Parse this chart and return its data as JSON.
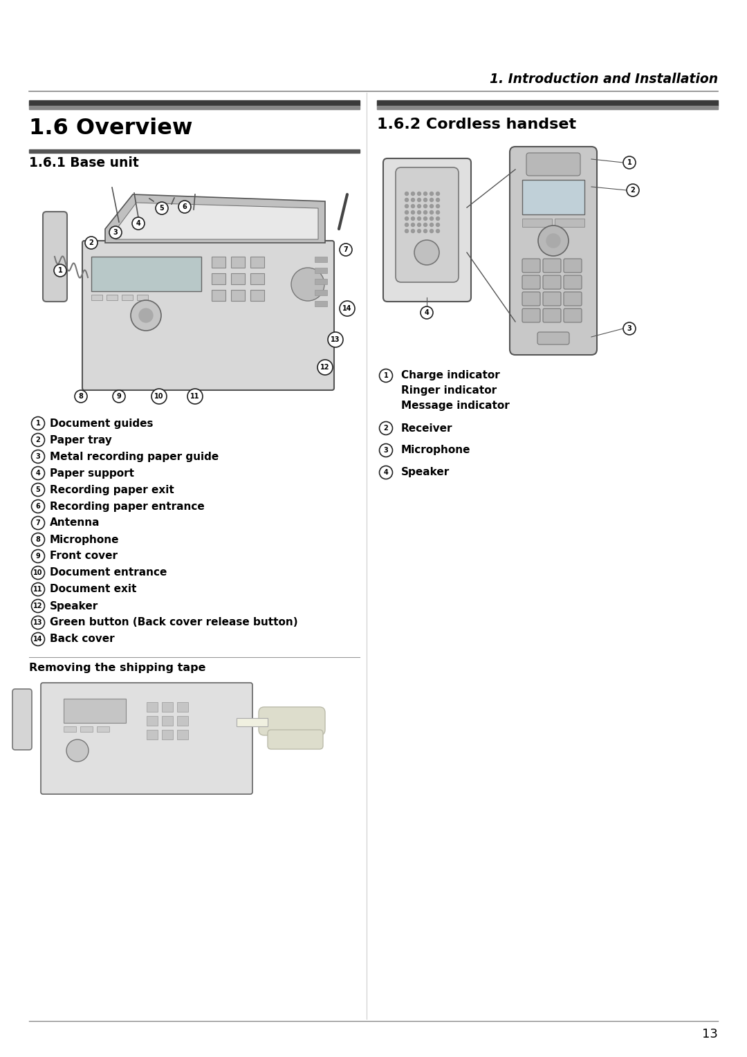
{
  "page_bg": "#ffffff",
  "header_text": "1. Introduction and Installation",
  "header_color": "#000000",
  "header_line_color": "#888888",
  "left_section_title": "1.6 Overview",
  "left_subsection_title": "1.6.1 Base unit",
  "right_subsection_title": "1.6.2 Cordless handset",
  "base_unit_labels": [
    {
      "num": "1",
      "text": "Document guides"
    },
    {
      "num": "2",
      "text": "Paper tray"
    },
    {
      "num": "3",
      "text": "Metal recording paper guide"
    },
    {
      "num": "4",
      "text": "Paper support"
    },
    {
      "num": "5",
      "text": "Recording paper exit"
    },
    {
      "num": "6",
      "text": "Recording paper entrance"
    },
    {
      "num": "7",
      "text": "Antenna"
    },
    {
      "num": "8",
      "text": "Microphone"
    },
    {
      "num": "9",
      "text": "Front cover"
    },
    {
      "num": "10",
      "text": "Document entrance"
    },
    {
      "num": "11",
      "text": "Document exit"
    },
    {
      "num": "12",
      "text": "Speaker"
    },
    {
      "num": "13",
      "text": "Green button (Back cover release button)"
    },
    {
      "num": "14",
      "text": "Back cover"
    }
  ],
  "cordless_labels": [
    {
      "num": "1",
      "lines": [
        "Charge indicator",
        "Ringer indicator",
        "Message indicator"
      ]
    },
    {
      "num": "2",
      "lines": [
        "Receiver"
      ]
    },
    {
      "num": "3",
      "lines": [
        "Microphone"
      ]
    },
    {
      "num": "4",
      "lines": [
        "Speaker"
      ]
    }
  ],
  "removing_tape_title": "Removing the shipping tape",
  "footer_number": "13",
  "section_bar_dark": "#4a4a4a",
  "section_bar_light": "#888888"
}
